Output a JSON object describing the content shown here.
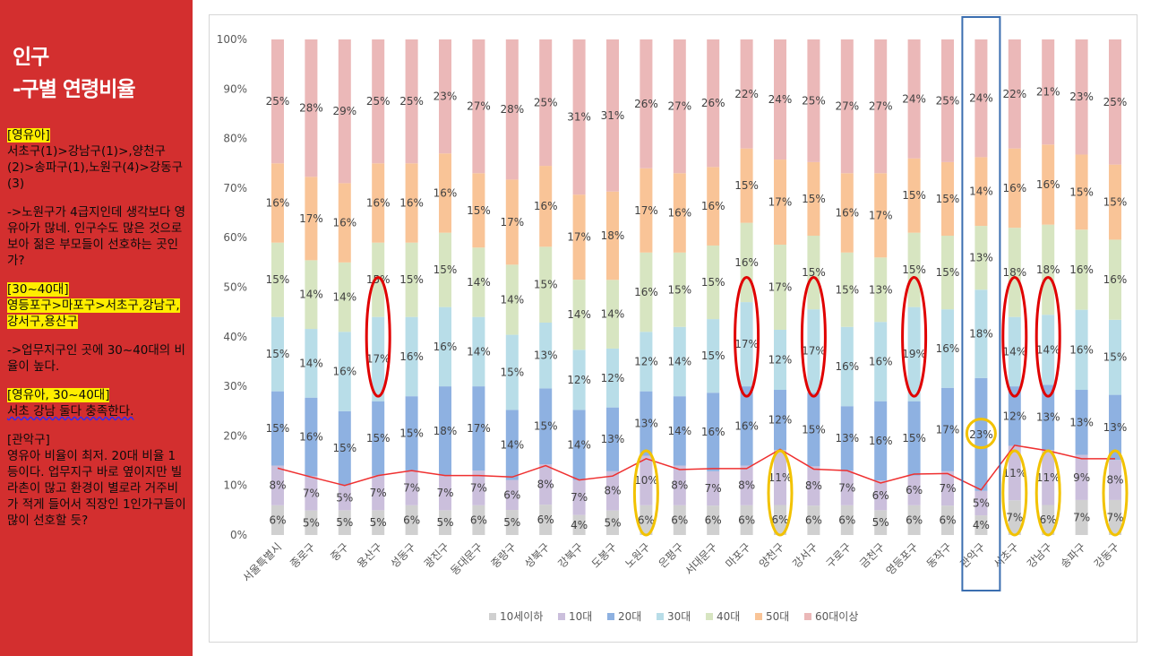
{
  "sidebar": {
    "title_line1": "인구",
    "title_line2": "-구별 연령비율",
    "note1_tag": "[영유아]",
    "note1_body": "서초구(1)>강남구(1)>,양천구(2)>송파구(1),노원구(4)>강동구(3)",
    "note2": "->노원구가  4급지인데 생각보다 영유아가 많네. 인구수도 많은 것으로 보아 젊은 부모들이 선호하는 곳인가?",
    "note3_tag": "[30~40대]",
    "note3_body": "영등포구>마포구>서초구,강남구,강서구,용산구",
    "note4": "->업무지구인 곳에 30~40대의 비율이 높다.",
    "note5_tag": "[영유아, 30~40대]",
    "note5_body": "서초 강남 둘다 충족한다.",
    "note6_tag": "[관악구]",
    "note6_body": "영유아 비율이 최저. 20대 비율 1등이다. 업무지구 바로 옆이지만 빌라촌이 많고 환경이 별로라 거주비가 적게 들어서 직장인 1인가구들이 많이 선호할 듯?"
  },
  "chart_data": {
    "type": "bar",
    "stacked": "percent",
    "ylim": [
      0,
      100
    ],
    "yticks": [
      "0%",
      "10%",
      "20%",
      "30%",
      "40%",
      "50%",
      "60%",
      "70%",
      "80%",
      "90%",
      "100%"
    ],
    "categories": [
      "서울특별시",
      "종로구",
      "중구",
      "용산구",
      "성동구",
      "광진구",
      "동대문구",
      "중랑구",
      "성북구",
      "강북구",
      "도봉구",
      "노원구",
      "은평구",
      "서대문구",
      "마포구",
      "양천구",
      "강서구",
      "구로구",
      "금천구",
      "영등포구",
      "동작구",
      "관악구",
      "서초구",
      "강남구",
      "송파구",
      "강동구"
    ],
    "series": [
      {
        "name": "10세이하",
        "color": "#d0d0d0",
        "values": [
          6,
          5,
          5,
          5,
          6,
          5,
          6,
          5,
          6,
          4,
          5,
          6,
          6,
          6,
          6,
          6,
          6,
          6,
          5,
          6,
          6,
          4,
          7,
          6,
          7,
          7
        ]
      },
      {
        "name": "10대",
        "color": "#cbbfdc",
        "values": [
          8,
          7,
          5,
          7,
          7,
          7,
          7,
          6,
          8,
          7,
          8,
          10,
          8,
          7,
          8,
          11,
          8,
          7,
          6,
          6,
          7,
          5,
          11,
          11,
          9,
          8
        ]
      },
      {
        "name": "20대",
        "color": "#8eb1e1",
        "values": [
          15,
          16,
          15,
          15,
          15,
          18,
          17,
          14,
          15,
          14,
          13,
          13,
          14,
          16,
          16,
          12,
          15,
          13,
          16,
          15,
          17,
          23,
          12,
          13,
          13,
          13
        ]
      },
      {
        "name": "30대",
        "color": "#b8dde8",
        "values": [
          15,
          14,
          16,
          17,
          16,
          16,
          14,
          15,
          13,
          12,
          12,
          12,
          14,
          15,
          17,
          12,
          17,
          16,
          16,
          19,
          16,
          18,
          14,
          14,
          16,
          15
        ]
      },
      {
        "name": "40대",
        "color": "#d7e5c1",
        "values": [
          15,
          14,
          14,
          15,
          15,
          15,
          14,
          14,
          15,
          14,
          14,
          16,
          15,
          15,
          16,
          17,
          15,
          15,
          13,
          15,
          15,
          13,
          18,
          18,
          16,
          16
        ]
      },
      {
        "name": "50대",
        "color": "#f9c497",
        "values": [
          16,
          17,
          16,
          16,
          16,
          16,
          15,
          17,
          16,
          17,
          18,
          17,
          16,
          16,
          15,
          17,
          15,
          16,
          17,
          15,
          15,
          14,
          16,
          16,
          15,
          15
        ]
      },
      {
        "name": "60대이상",
        "color": "#ebb8b8",
        "values": [
          25,
          28,
          29,
          25,
          25,
          23,
          27,
          28,
          25,
          31,
          31,
          26,
          27,
          26,
          22,
          24,
          25,
          27,
          27,
          24,
          25,
          24,
          22,
          21,
          23,
          25
        ]
      }
    ],
    "line_overlay": {
      "color": "#ef3030",
      "values": [
        13.5,
        11.7,
        10,
        12,
        13,
        12,
        12,
        11.7,
        14,
        11.1,
        11.9,
        15.4,
        13.2,
        13.4,
        13.4,
        17.3,
        13.3,
        13,
        10.5,
        12.3,
        12.4,
        9.1,
        18.1,
        17,
        15.4,
        15.4
      ]
    },
    "highlights": [
      {
        "category": "용산구",
        "shape": "red-ellipse"
      },
      {
        "category": "노원구",
        "shape": "yellow-ellipse"
      },
      {
        "category": "마포구",
        "shape": "red-ellipse"
      },
      {
        "category": "양천구",
        "shape": "yellow-ellipse"
      },
      {
        "category": "강서구",
        "shape": "red-ellipse"
      },
      {
        "category": "영등포구",
        "shape": "red-ellipse"
      },
      {
        "category": "관악구",
        "shape": "blue-rectangle"
      },
      {
        "category": "관악구",
        "shape": "yellow-circle"
      },
      {
        "category": "서초구",
        "shape": "red-ellipse"
      },
      {
        "category": "서초구",
        "shape": "yellow-ellipse"
      },
      {
        "category": "강남구",
        "shape": "red-ellipse"
      },
      {
        "category": "강남구",
        "shape": "yellow-ellipse"
      },
      {
        "category": "강동구",
        "shape": "yellow-ellipse"
      }
    ],
    "legend_position": "bottom",
    "grid": false
  }
}
